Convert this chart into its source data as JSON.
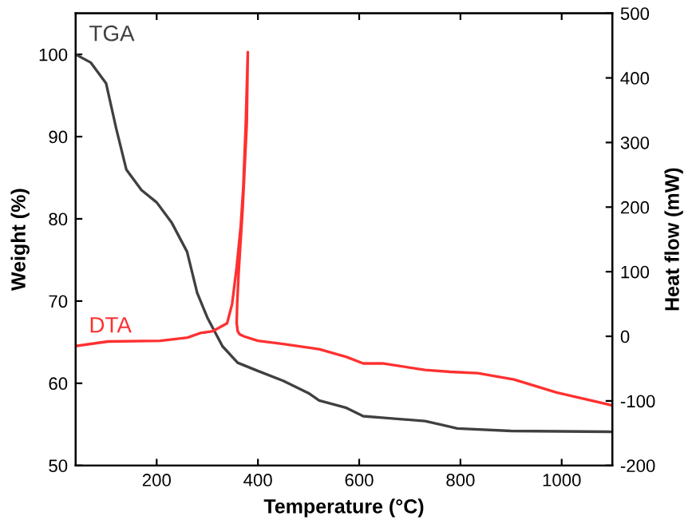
{
  "chart_data": {
    "type": "line",
    "xlabel": "Temperature (°C)",
    "ylabel": "Weight (%)",
    "y2label": "Heat flow (mW)",
    "xlim": [
      40,
      1100
    ],
    "xticks": [
      200,
      400,
      600,
      800,
      1000
    ],
    "ylim": [
      50,
      105
    ],
    "yticks": [
      50,
      60,
      70,
      80,
      90,
      100
    ],
    "y2lim": [
      -200,
      500
    ],
    "y2ticks": [
      -200,
      -100,
      0,
      100,
      200,
      300,
      400,
      500
    ],
    "grid": false,
    "legend": false,
    "marker": "none",
    "line_style": "solid",
    "series": [
      {
        "name": "TGA",
        "color": "#404040",
        "x": [
          40,
          70,
          100,
          120,
          140,
          170,
          200,
          230,
          260,
          280,
          300,
          330,
          360,
          400,
          450,
          500,
          521,
          540,
          575,
          608,
          650,
          730,
          760,
          794,
          900,
          1100
        ],
        "values": [
          100,
          99,
          96.5,
          91,
          86,
          83.5,
          82,
          79.5,
          76,
          71,
          68,
          64.5,
          62.5,
          61.5,
          60.3,
          58.8,
          57.9,
          57.6,
          57.0,
          56.0,
          55.8,
          55.4,
          55.0,
          54.5,
          54.2,
          54.1
        ]
      },
      {
        "name": "DTA",
        "color": "#ff3030",
        "axis": "y2",
        "x": [
          40,
          104,
          207,
          261,
          286,
          311,
          339,
          349,
          358,
          366,
          371,
          376,
          380,
          378,
          370,
          362,
          359,
          358,
          360,
          364,
          372,
          400,
          450,
          521,
          575,
          608,
          646,
          730,
          780,
          834,
          906,
          990,
          1100
        ],
        "values": [
          -15,
          -8,
          -7,
          -2,
          5,
          8,
          20,
          50,
          107,
          170,
          230,
          330,
          440,
          330,
          200,
          100,
          50,
          20,
          8,
          3,
          0,
          -7,
          -12,
          -20,
          -32,
          -42,
          -42,
          -52,
          -55,
          -57,
          -67,
          -87,
          -107
        ]
      }
    ]
  }
}
